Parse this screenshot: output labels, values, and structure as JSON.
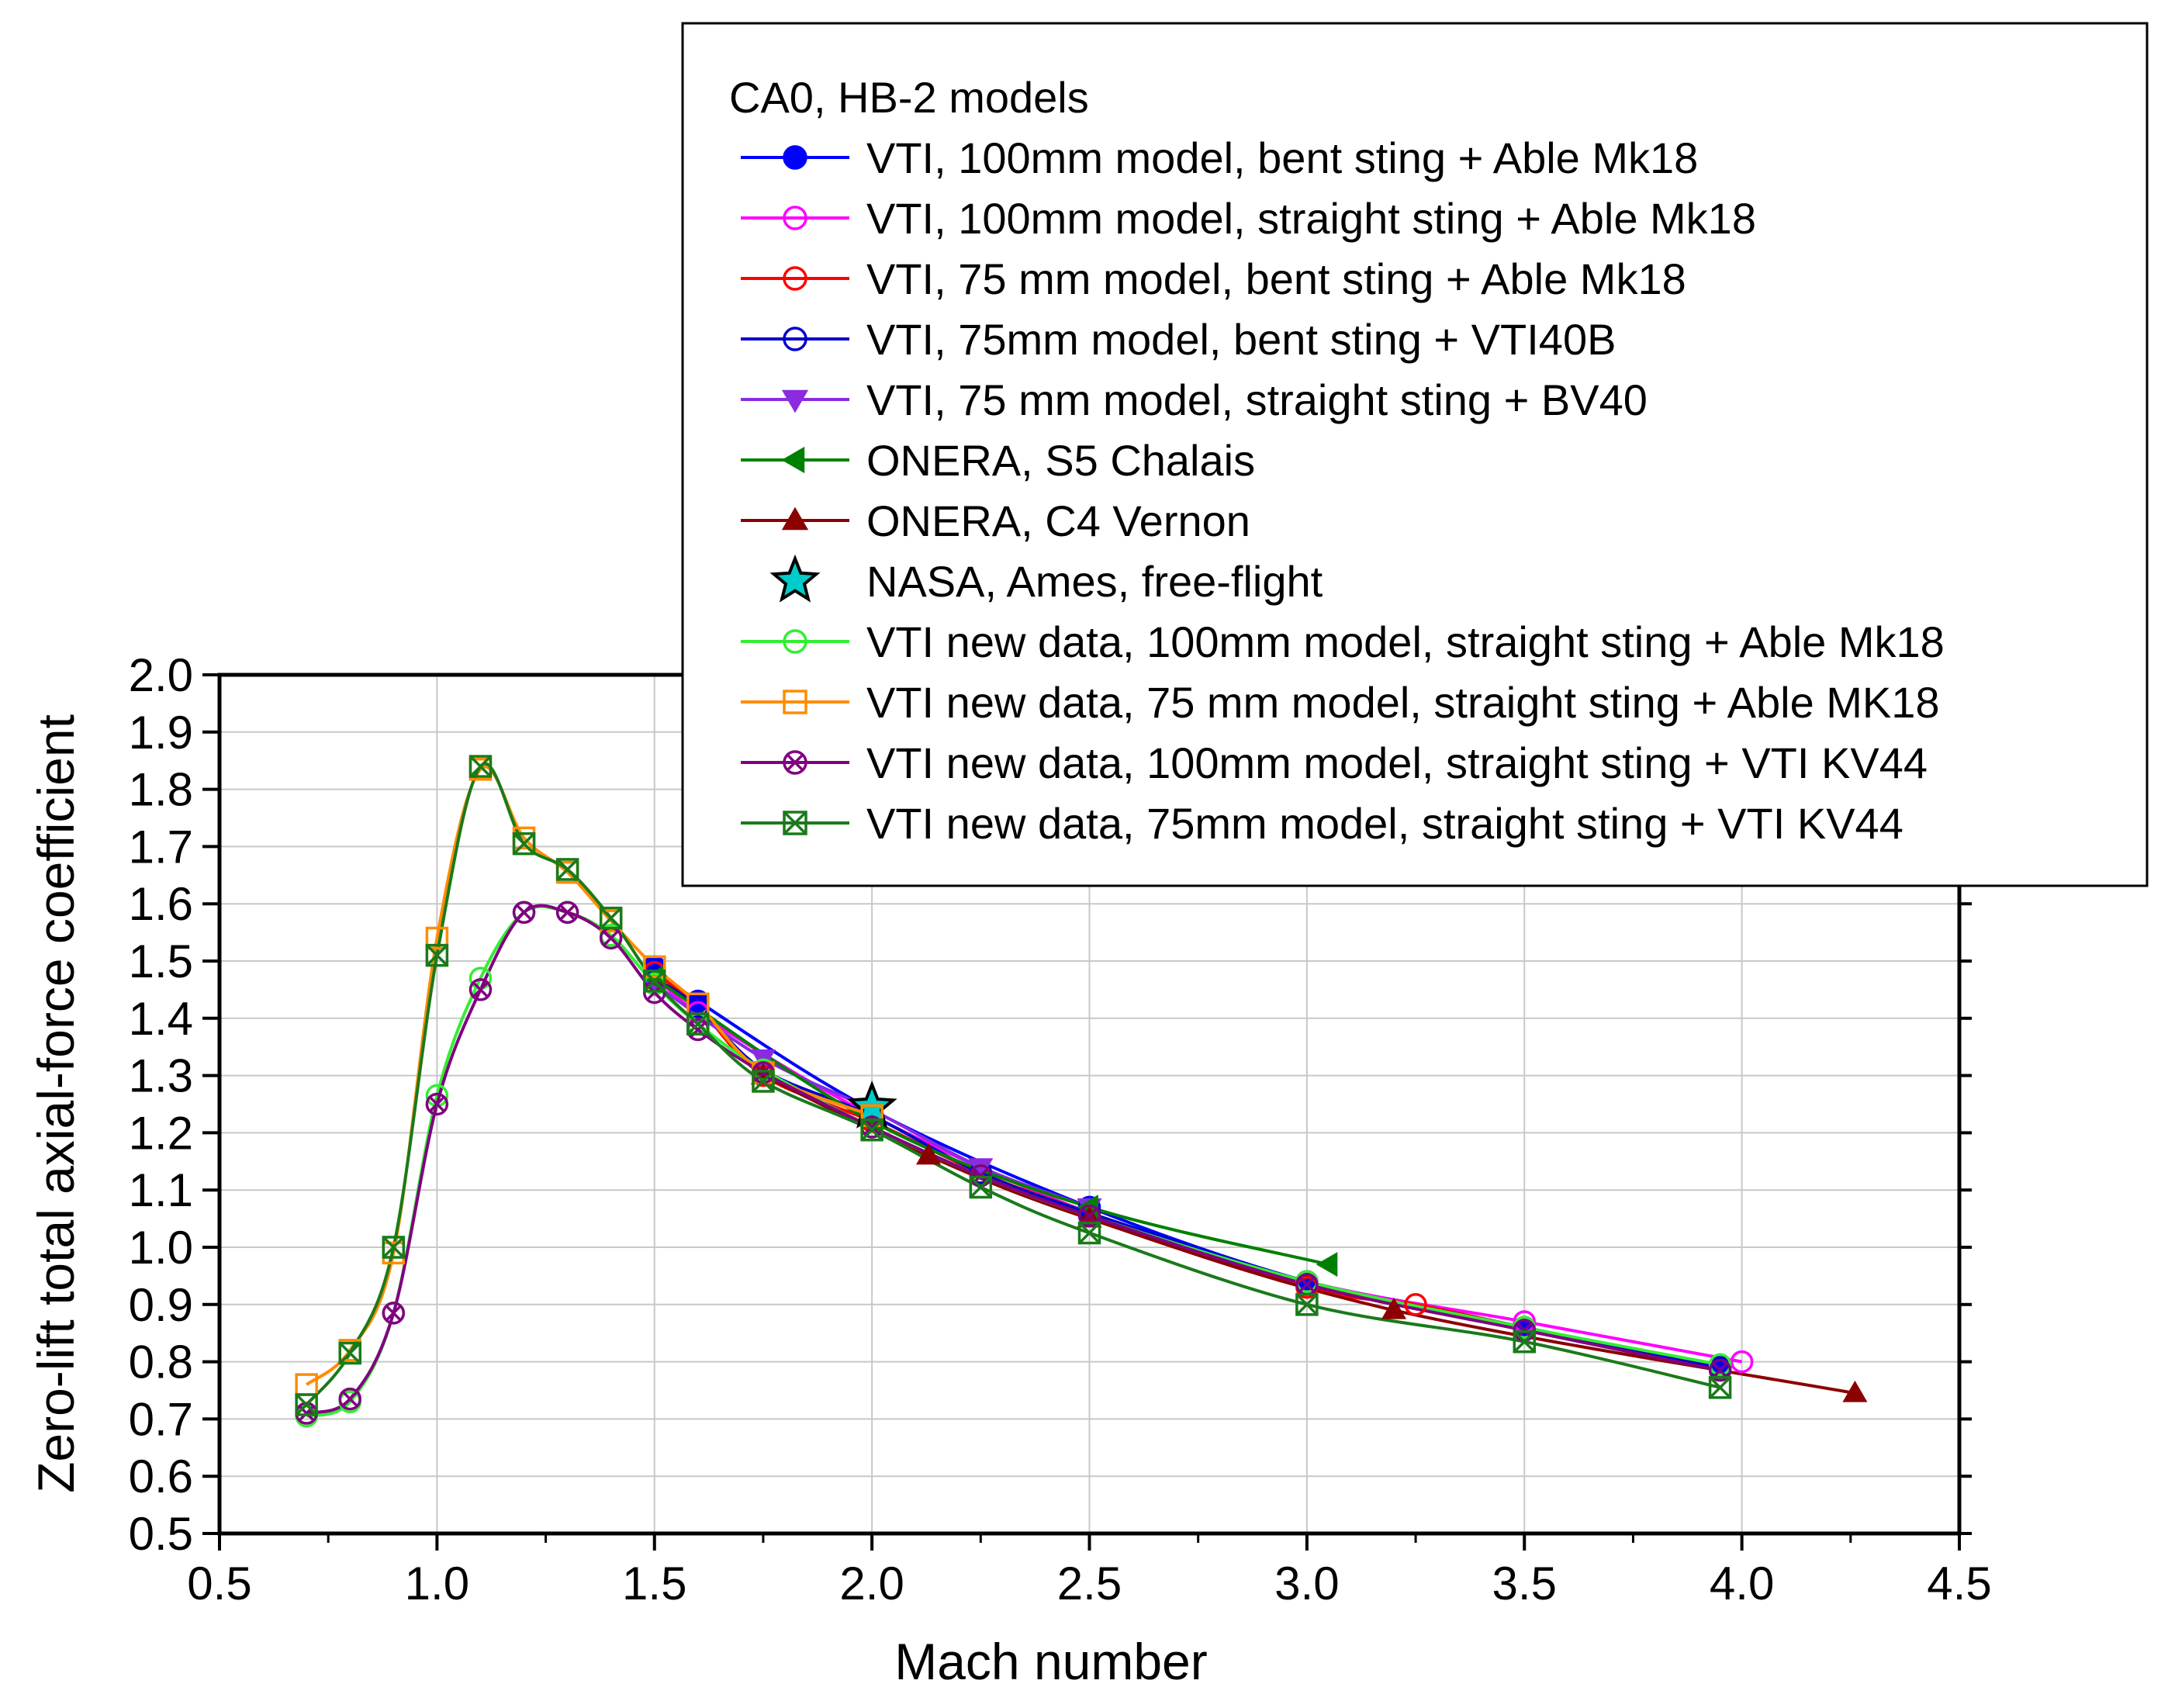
{
  "chart_data": {
    "type": "line",
    "title": "",
    "xlabel": "Mach number",
    "ylabel": "Zero-lift total axial-force coefficient",
    "xlim": [
      0.5,
      4.5
    ],
    "ylim": [
      0.5,
      2.0
    ],
    "xticks": [
      "0.5",
      "1.0",
      "1.5",
      "2.0",
      "2.5",
      "3.0",
      "3.5",
      "4.0",
      "4.5"
    ],
    "yticks": [
      "0.5",
      "0.6",
      "0.7",
      "0.8",
      "0.9",
      "1.0",
      "1.1",
      "1.2",
      "1.3",
      "1.4",
      "1.5",
      "1.6",
      "1.7",
      "1.8",
      "1.9",
      "2.0"
    ],
    "grid": true,
    "legend_title": "CA0, HB-2 models",
    "legend_position": "top-right",
    "series": [
      {
        "name": "VTI, 100mm model, bent sting + Able Mk18",
        "color": "#0000ff",
        "marker": "circle-filled",
        "x": [
          1.5,
          1.6,
          2.0,
          2.5,
          3.0,
          3.5,
          3.95
        ],
        "y": [
          1.49,
          1.43,
          1.24,
          1.07,
          0.94,
          0.86,
          0.79
        ]
      },
      {
        "name": "VTI, 100mm model, straight sting + Able Mk18",
        "color": "#ff00ff",
        "marker": "circle-open",
        "x": [
          1.5,
          1.6,
          2.0,
          2.5,
          3.0,
          3.5,
          4.0
        ],
        "y": [
          1.48,
          1.41,
          1.23,
          1.06,
          0.94,
          0.87,
          0.8
        ]
      },
      {
        "name": "VTI, 75 mm model, bent sting + Able Mk18",
        "color": "#ff0000",
        "marker": "circle-open",
        "x": [
          1.5,
          1.6,
          1.75,
          2.0,
          2.25,
          2.5,
          3.0,
          3.25,
          3.5,
          3.95
        ],
        "y": [
          1.48,
          1.42,
          1.3,
          1.22,
          1.13,
          1.06,
          0.93,
          0.9,
          0.86,
          0.79
        ]
      },
      {
        "name": "VTI, 75mm model, bent sting + VTI40B",
        "color": "#0000cc",
        "marker": "circle-open",
        "x": [
          1.5,
          1.6,
          1.75,
          2.0,
          2.25,
          2.5,
          3.0,
          3.5,
          3.95
        ],
        "y": [
          1.47,
          1.42,
          1.31,
          1.23,
          1.13,
          1.06,
          0.94,
          0.86,
          0.79
        ]
      },
      {
        "name": "VTI, 75 mm model, straight sting + BV40",
        "color": "#8a2be2",
        "marker": "triangle-down",
        "x": [
          1.5,
          1.75,
          2.0,
          2.25,
          2.5
        ],
        "y": [
          1.46,
          1.33,
          1.24,
          1.14,
          1.07
        ]
      },
      {
        "name": "ONERA, S5 Chalais",
        "color": "#008000",
        "marker": "triangle-left",
        "x": [
          1.5,
          2.0,
          2.5,
          3.05
        ],
        "y": [
          1.47,
          1.22,
          1.07,
          0.97
        ]
      },
      {
        "name": "ONERA, C4 Vernon",
        "color": "#8b0000",
        "marker": "triangle-up",
        "x": [
          1.75,
          2.13,
          2.5,
          3.2,
          4.26
        ],
        "y": [
          1.3,
          1.16,
          1.05,
          0.89,
          0.745
        ]
      },
      {
        "name": "NASA, Ames, free-flight",
        "color": "#00cccc",
        "marker": "star",
        "x": [
          2.0
        ],
        "y": [
          1.245
        ]
      },
      {
        "name": "VTI new data, 100mm model, straight sting + Able Mk18",
        "color": "#33ee33",
        "marker": "circle-open",
        "x": [
          0.7,
          0.8,
          0.9,
          1.0,
          1.1,
          1.2,
          1.3,
          1.4,
          1.5,
          1.6,
          1.75,
          2.0,
          2.25,
          2.5,
          3.0,
          3.5,
          3.95
        ],
        "y": [
          0.705,
          0.73,
          0.885,
          1.265,
          1.47,
          1.585,
          1.585,
          1.545,
          1.46,
          1.39,
          1.31,
          1.21,
          1.125,
          1.055,
          0.94,
          0.86,
          0.795
        ]
      },
      {
        "name": "VTI new data, 75 mm model, straight sting + Able MK18",
        "color": "#ff8c00",
        "marker": "square-open",
        "x": [
          0.7,
          0.8,
          0.9,
          1.0,
          1.1,
          1.2,
          1.3,
          1.4,
          1.5,
          1.6,
          1.75,
          2.0
        ],
        "y": [
          0.76,
          0.82,
          0.99,
          1.54,
          1.835,
          1.715,
          1.655,
          1.57,
          1.49,
          1.425,
          1.305,
          1.23
        ]
      },
      {
        "name": "VTI new data, 100mm model, straight sting + VTI KV44",
        "color": "#800080",
        "marker": "circle-x",
        "x": [
          0.7,
          0.8,
          0.9,
          1.0,
          1.1,
          1.2,
          1.3,
          1.4,
          1.5,
          1.6,
          1.75,
          2.0,
          2.25,
          2.5,
          3.0,
          3.5,
          3.95
        ],
        "y": [
          0.71,
          0.735,
          0.885,
          1.25,
          1.45,
          1.585,
          1.585,
          1.54,
          1.445,
          1.38,
          1.305,
          1.21,
          1.125,
          1.055,
          0.935,
          0.855,
          0.785
        ]
      },
      {
        "name": "VTI new data, 75mm model, straight sting + VTI KV44",
        "color": "#1a7a1a",
        "marker": "square-x",
        "x": [
          0.7,
          0.8,
          0.9,
          1.0,
          1.1,
          1.2,
          1.3,
          1.4,
          1.5,
          1.6,
          1.75,
          2.0,
          2.25,
          2.5,
          3.0,
          3.5,
          3.95
        ],
        "y": [
          0.725,
          0.815,
          1.0,
          1.51,
          1.84,
          1.705,
          1.66,
          1.575,
          1.465,
          1.39,
          1.29,
          1.205,
          1.105,
          1.025,
          0.9,
          0.835,
          0.755
        ]
      }
    ]
  }
}
